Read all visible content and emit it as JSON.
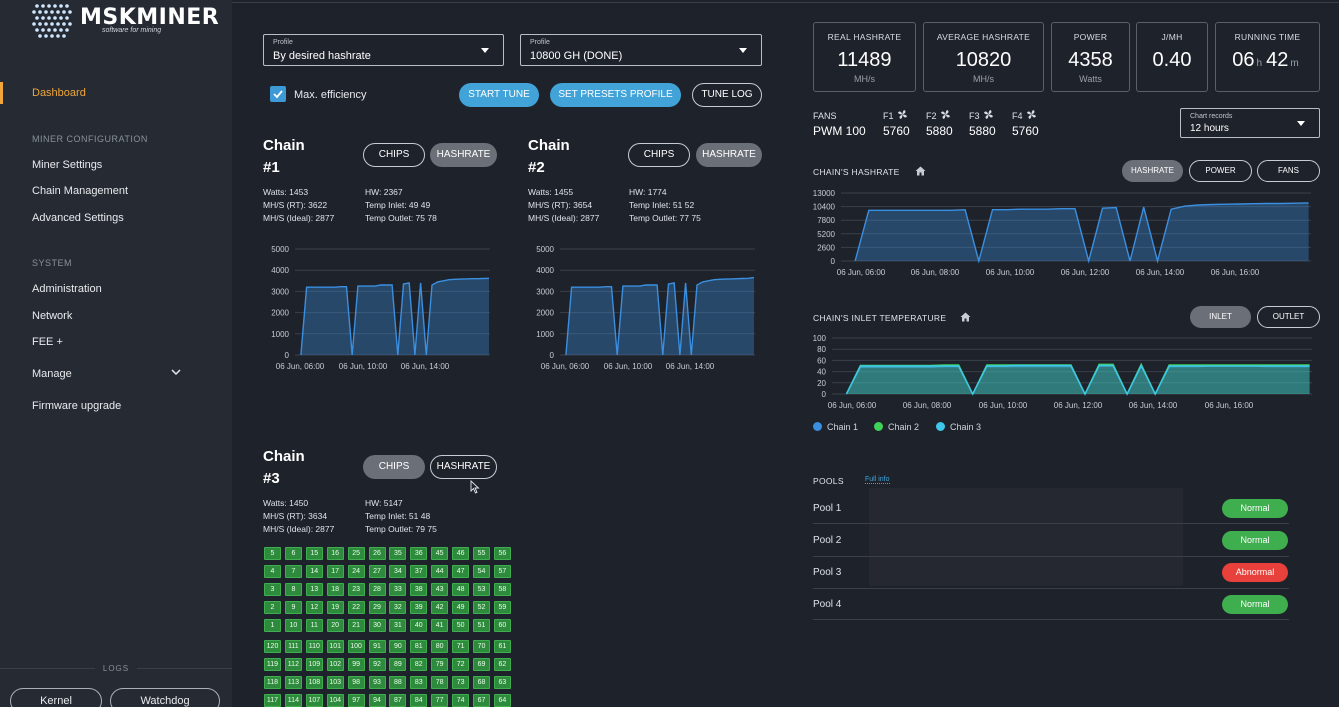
{
  "logo": {
    "title": "MSKMINER",
    "subtitle": "software for mining"
  },
  "sidebar": {
    "dashboard": "Dashboard",
    "section_miner": "MINER CONFIGURATION",
    "miner_settings": "Miner Settings",
    "chain_management": "Chain Management",
    "advanced_settings": "Advanced Settings",
    "section_system": "SYSTEM",
    "administration": "Administration",
    "network": "Network",
    "fee": "FEE +",
    "manage": "Manage",
    "firmware": "Firmware upgrade",
    "logs_label": "LOGS",
    "kernel": "Kernel",
    "watchdog": "Watchdog"
  },
  "tune": {
    "profile1_label": "Profile",
    "profile1_value": "By desired hashrate",
    "profile2_label": "Profile",
    "profile2_value": "10800 GH (DONE)",
    "max_efficiency": "Max. efficiency",
    "start_tune": "START TUNE",
    "set_presets": "SET PRESETS PROFILE",
    "tune_log": "TUNE LOG"
  },
  "chains": [
    {
      "title_line1": "Chain",
      "title_line2": "#1",
      "chips_btn": "CHIPS",
      "hashrate_btn": "HASHRATE",
      "watts": "Watts: 1453",
      "rt": "MH/S (RT): 3622",
      "ideal": "MH/S (Ideal): 2877",
      "hw": "HW: 2367",
      "inlet": "Temp Inlet: 49 49",
      "outlet": "Temp Outlet: 75 78"
    },
    {
      "title_line1": "Chain",
      "title_line2": "#2",
      "chips_btn": "CHIPS",
      "hashrate_btn": "HASHRATE",
      "watts": "Watts: 1455",
      "rt": "MH/S (RT): 3654",
      "ideal": "MH/S (Ideal): 2877",
      "hw": "HW: 1774",
      "inlet": "Temp Inlet: 51 52",
      "outlet": "Temp Outlet: 77 75"
    },
    {
      "title_line1": "Chain",
      "title_line2": "#3",
      "chips_btn": "CHIPS",
      "hashrate_btn": "HASHRATE",
      "watts": "Watts: 1450",
      "rt": "MH/S (RT): 3634",
      "ideal": "MH/S (Ideal): 2877",
      "hw": "HW: 5147",
      "inlet": "Temp Inlet: 51 48",
      "outlet": "Temp Outlet: 79 75"
    }
  ],
  "chip_grid": [
    [
      "5",
      "6",
      "15",
      "16",
      "25",
      "26",
      "35",
      "36",
      "45",
      "46",
      "55",
      "56"
    ],
    [
      "4",
      "7",
      "14",
      "17",
      "24",
      "27",
      "34",
      "37",
      "44",
      "47",
      "54",
      "57"
    ],
    [
      "3",
      "8",
      "13",
      "18",
      "23",
      "28",
      "33",
      "38",
      "43",
      "48",
      "53",
      "58"
    ],
    [
      "2",
      "9",
      "12",
      "19",
      "22",
      "29",
      "32",
      "39",
      "42",
      "49",
      "52",
      "59"
    ],
    [
      "1",
      "10",
      "11",
      "20",
      "21",
      "30",
      "31",
      "40",
      "41",
      "50",
      "51",
      "60"
    ],
    [
      "120",
      "111",
      "110",
      "101",
      "100",
      "91",
      "90",
      "81",
      "80",
      "71",
      "70",
      "61"
    ],
    [
      "119",
      "112",
      "109",
      "102",
      "99",
      "92",
      "89",
      "82",
      "79",
      "72",
      "69",
      "62"
    ],
    [
      "118",
      "113",
      "108",
      "103",
      "98",
      "93",
      "88",
      "83",
      "78",
      "73",
      "68",
      "63"
    ],
    [
      "117",
      "114",
      "107",
      "104",
      "97",
      "94",
      "87",
      "84",
      "77",
      "74",
      "67",
      "64"
    ]
  ],
  "stats": {
    "real_title": "REAL HASHRATE",
    "real_value": "11489",
    "real_unit": "MH/s",
    "avg_title": "AVERAGE HASHRATE",
    "avg_value": "10820",
    "avg_unit": "MH/s",
    "power_title": "POWER",
    "power_value": "4358",
    "power_unit": "Watts",
    "jmh_title": "J/MH",
    "jmh_value": "0.40",
    "rt_title": "RUNNING TIME",
    "rt_hours": "06",
    "rt_h": "h",
    "rt_minutes": "42",
    "rt_m": "m"
  },
  "fans": {
    "label": "FANS",
    "pwm": "PWM 100",
    "f1": "F1",
    "f2": "F2",
    "f3": "F3",
    "f4": "F4",
    "v1": "5760",
    "v2": "5880",
    "v3": "5880",
    "v4": "5760"
  },
  "chart_records": {
    "label": "Chart records",
    "value": "12 hours"
  },
  "hash_section": {
    "title": "CHAIN'S HASHRATE",
    "btn_hashrate": "HASHRATE",
    "btn_power": "POWER",
    "btn_fans": "FANS"
  },
  "temp_section": {
    "title": "CHAIN'S INLET TEMPERATURE",
    "btn_inlet": "INLET",
    "btn_outlet": "OUTLET"
  },
  "legend": {
    "c1": "Chain 1",
    "c2": "Chain 2",
    "c3": "Chain 3",
    "color1": "#3b8fe0",
    "color2": "#3fd15a",
    "color3": "#3ec7e8"
  },
  "pools": {
    "title": "POOLS",
    "full_info": "Full info",
    "p1": "Pool 1",
    "p2": "Pool 2",
    "p3": "Pool 3",
    "p4": "Pool 4",
    "s1": "Normal",
    "s2": "Normal",
    "s3": "Abnormal",
    "s4": "Normal"
  },
  "chart_data": [
    {
      "type": "area",
      "title": "Chain #1 hashrate",
      "ylim": [
        0,
        5000
      ],
      "yticks": [
        "5000",
        "4000",
        "3000",
        "2000",
        "1000",
        "0"
      ],
      "xticks": [
        "06 Jun, 06:00",
        "06 Jun, 10:00",
        "06 Jun, 14:00"
      ],
      "series": [
        {
          "name": "Chain 1",
          "values": [
            0,
            3200,
            3200,
            3200,
            3200,
            3200,
            3200,
            3220,
            3220,
            0,
            3250,
            3250,
            3250,
            3250,
            3300,
            3300,
            3300,
            0,
            3350,
            3400,
            0,
            3400,
            0,
            3300,
            3450,
            3500,
            3550,
            3570,
            3580,
            3590,
            3600,
            3600,
            3610,
            3620
          ]
        }
      ]
    },
    {
      "type": "area",
      "title": "Chain #2 hashrate",
      "ylim": [
        0,
        5000
      ],
      "yticks": [
        "5000",
        "4000",
        "3000",
        "2000",
        "1000",
        "0"
      ],
      "xticks": [
        "06 Jun, 06:00",
        "06 Jun, 10:00",
        "06 Jun, 14:00"
      ],
      "series": [
        {
          "name": "Chain 2",
          "values": [
            0,
            3200,
            3200,
            3200,
            3200,
            3200,
            3200,
            3220,
            3220,
            0,
            3250,
            3250,
            3250,
            3250,
            3300,
            3300,
            3300,
            0,
            3350,
            3400,
            0,
            3400,
            0,
            3300,
            3450,
            3500,
            3550,
            3570,
            3580,
            3590,
            3600,
            3610,
            3620,
            3650
          ]
        }
      ]
    },
    {
      "type": "area",
      "title": "CHAIN'S HASHRATE",
      "ylim": [
        0,
        13000
      ],
      "yticks": [
        "13000",
        "10400",
        "7800",
        "5200",
        "2600",
        "0"
      ],
      "xticks": [
        "06 Jun, 06:00",
        "06 Jun, 08:00",
        "06 Jun, 10:00",
        "06 Jun, 12:00",
        "06 Jun, 14:00",
        "06 Jun, 16:00"
      ],
      "series": [
        {
          "name": "Total",
          "values": [
            0,
            9700,
            9700,
            9700,
            9700,
            9700,
            9700,
            9700,
            9800,
            0,
            9800,
            9800,
            9900,
            9900,
            9900,
            10000,
            10000,
            0,
            10100,
            10200,
            0,
            10300,
            0,
            9900,
            10500,
            10700,
            10800,
            10850,
            10900,
            10950,
            11000,
            11000,
            11050,
            11100
          ]
        }
      ]
    },
    {
      "type": "area",
      "title": "CHAIN'S INLET TEMPERATURE",
      "ylim": [
        0,
        100
      ],
      "yticks": [
        "100",
        "80",
        "60",
        "40",
        "20",
        "0"
      ],
      "xticks": [
        "06 Jun, 06:00",
        "06 Jun, 08:00",
        "06 Jun, 10:00",
        "06 Jun, 12:00",
        "06 Jun, 14:00",
        "06 Jun, 16:00"
      ],
      "series": [
        {
          "name": "Chain 1",
          "values": [
            0,
            48,
            48,
            48,
            48,
            48,
            48,
            49,
            49,
            0,
            49,
            49,
            49,
            49,
            49,
            49,
            49,
            0,
            50,
            50,
            0,
            50,
            0,
            49,
            49,
            49,
            50,
            50,
            50,
            50,
            49,
            49,
            49,
            49
          ]
        },
        {
          "name": "Chain 2",
          "values": [
            0,
            51,
            51,
            51,
            51,
            51,
            51,
            52,
            52,
            0,
            52,
            52,
            52,
            52,
            52,
            52,
            52,
            0,
            53,
            53,
            0,
            53,
            0,
            52,
            52,
            52,
            52,
            52,
            52,
            52,
            52,
            52,
            52,
            52
          ]
        },
        {
          "name": "Chain 3",
          "values": [
            0,
            50,
            50,
            50,
            50,
            50,
            50,
            50,
            50,
            0,
            50,
            50,
            51,
            51,
            51,
            51,
            51,
            0,
            51,
            51,
            0,
            51,
            0,
            50,
            50,
            50,
            50,
            50,
            50,
            50,
            50,
            50,
            50,
            50
          ]
        }
      ]
    }
  ]
}
